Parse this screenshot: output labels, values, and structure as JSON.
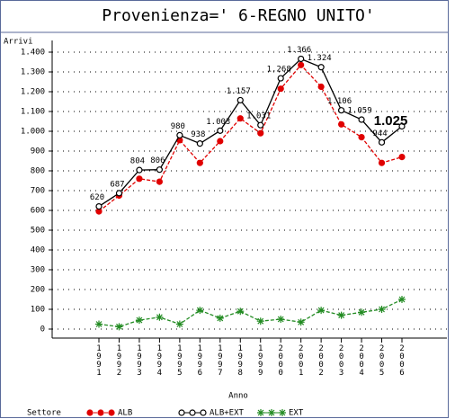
{
  "chart_data": {
    "type": "line",
    "title": "Provenienza=' 6-REGNO UNITO'",
    "y_label": "Arrivi",
    "x_label": "Anno",
    "legend_title": "Settore",
    "categories": [
      "1991",
      "1992",
      "1993",
      "1994",
      "1995",
      "1996",
      "1997",
      "1998",
      "1999",
      "2000",
      "2001",
      "2002",
      "2003",
      "2004",
      "2005",
      "2006"
    ],
    "series": [
      {
        "name": "ALB",
        "color": "#e00000",
        "marker": "filled-circle",
        "dashed": true,
        "values": [
          595,
          675,
          760,
          745,
          955,
          840,
          950,
          1065,
          990,
          1215,
          1335,
          1225,
          1035,
          970,
          840,
          870
        ]
      },
      {
        "name": "ALB+EXT",
        "color": "#000000",
        "marker": "open-circle",
        "dashed": false,
        "values": [
          620,
          687,
          804,
          806,
          980,
          938,
          1003,
          1157,
          1031,
          1268,
          1366,
          1324,
          1106,
          1059,
          944,
          1025
        ],
        "value_labels": [
          "620",
          "687",
          "804",
          "806",
          "980",
          "938",
          "1.003",
          "1.157",
          "1.031",
          "1.268",
          "1.366",
          "1.324",
          "1.106",
          "1.059",
          "944",
          "1.025"
        ]
      },
      {
        "name": "EXT",
        "color": "#228b22",
        "marker": "star",
        "dashed": true,
        "values": [
          25,
          12,
          45,
          60,
          25,
          95,
          55,
          90,
          40,
          50,
          35,
          95,
          70,
          85,
          100,
          150
        ]
      }
    ],
    "ylim": [
      0,
      1400
    ],
    "yticks": [
      0,
      100,
      200,
      300,
      400,
      500,
      600,
      700,
      800,
      900,
      {
        "value": 1000,
        "label": "1.000"
      },
      {
        "value": 1100,
        "label": "1.100"
      },
      {
        "value": 1200,
        "label": "1.200"
      },
      {
        "value": 1300,
        "label": "1.300"
      },
      {
        "value": 1400,
        "label": "1.400"
      }
    ],
    "grid": true
  }
}
